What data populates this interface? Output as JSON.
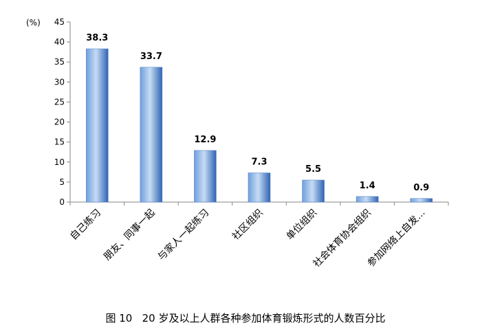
{
  "chart_data": {
    "type": "bar",
    "unit_label": "(%)",
    "categories": [
      "自己练习",
      "朋友、同事一起",
      "与家人一起练习",
      "社区组织",
      "单位组织",
      "社会体育协会组织",
      "参加网络上自发..."
    ],
    "values": [
      38.3,
      33.7,
      12.9,
      7.3,
      5.5,
      1.4,
      0.9
    ],
    "value_labels": [
      "38.3",
      "33.7",
      "12.9",
      "7.3",
      "5.5",
      "1.4",
      "0.9"
    ],
    "ylim": [
      0,
      45
    ],
    "yticks": [
      0,
      5,
      10,
      15,
      20,
      25,
      30,
      35,
      40,
      45
    ],
    "grid": false,
    "legend": "none",
    "colors": {
      "bar_light": "#c6dcf4",
      "bar_mid": "#6f9fdc",
      "bar_dark": "#2f63b3",
      "axis": "#868686"
    }
  },
  "caption": "图 10   20 岁及以上人群各种参加体育锻炼形式的人数百分比"
}
